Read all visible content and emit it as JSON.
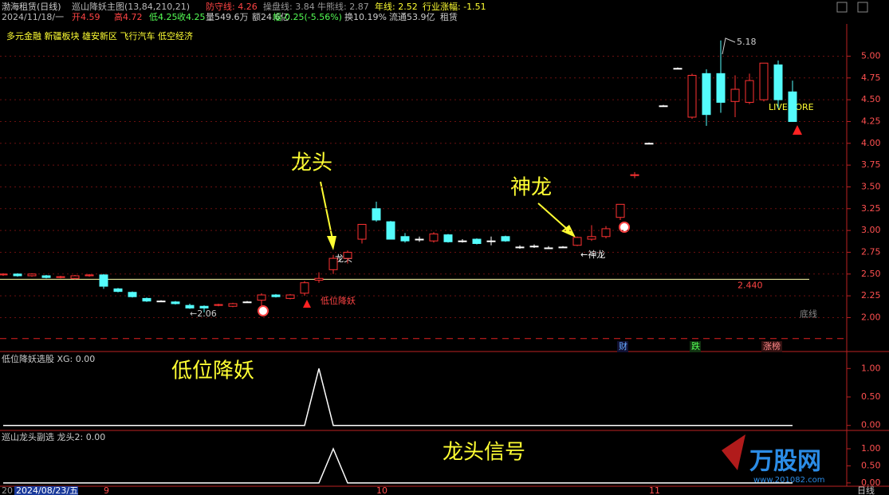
{
  "header": {
    "stock": "渤海租赁(日线)",
    "indicator": "巡山降妖主图(13,84,210,21)",
    "defense": "防守线: 4.26",
    "operate": "操盘线: 3.84",
    "bull_bear": "牛熊线: 2.87",
    "year_line": "年线: 2.52",
    "industry": "行业涨幅: -1.51",
    "date": "2024/11/18/一",
    "open": "开4.59",
    "high": "高4.72",
    "low": "低4.25",
    "close": "收4.25",
    "volume": "量549.6万",
    "amount": "额24.6亿",
    "change": "幅-0.25(-5.56%)",
    "turnover": "换10.19%",
    "float": "流通53.9亿",
    "industry_name": "租赁"
  },
  "sectors": "多元金融 新疆板块 雄安新区 飞行汽车 低空经济",
  "annotations": {
    "dragon_head": "龙头",
    "divine_dragon": "神龙",
    "low_demon": "低位降妖",
    "head_signal": "龙头信号",
    "small_head": "龙头",
    "small_divine": "←神龙",
    "small_low": "低位降妖",
    "low_price": "←2.06",
    "high_price": "5.18",
    "livemore": "LIVEMORE",
    "tag_fin": "财",
    "tag_fall": "跌",
    "tag_rank": "涨榜"
  },
  "footer": {
    "cursor_date": "2024/08/23/五",
    "cut_year": "20",
    "period": "日线",
    "logo": "万股网",
    "site": "www.201082.com"
  },
  "chart_data": [
    {
      "type": "candlestick",
      "up_color": "#ff3232",
      "down_color": "#54fcfc",
      "categories": [
        null,
        null,
        null,
        null,
        null,
        null,
        null,
        "9",
        null,
        null,
        null,
        null,
        null,
        null,
        null,
        null,
        null,
        null,
        null,
        null,
        null,
        null,
        null,
        null,
        null,
        null,
        "10",
        null,
        null,
        null,
        null,
        null,
        null,
        null,
        null,
        null,
        null,
        null,
        null,
        null,
        null,
        null,
        null,
        null,
        null,
        "11",
        null,
        null,
        null,
        null,
        null,
        null,
        null,
        null,
        null,
        null
      ],
      "ohlc": [
        [
          2.49,
          2.51,
          2.48,
          2.5
        ],
        [
          2.5,
          2.51,
          2.47,
          2.48
        ],
        [
          2.48,
          2.51,
          2.47,
          2.5
        ],
        [
          2.48,
          2.49,
          2.45,
          2.46
        ],
        [
          2.46,
          2.48,
          2.45,
          2.47
        ],
        [
          2.45,
          2.49,
          2.44,
          2.48
        ],
        [
          2.48,
          2.5,
          2.47,
          2.49
        ],
        [
          2.49,
          2.5,
          2.33,
          2.36
        ],
        [
          2.33,
          2.34,
          2.29,
          2.3
        ],
        [
          2.29,
          2.3,
          2.23,
          2.24
        ],
        [
          2.22,
          2.23,
          2.18,
          2.19
        ],
        [
          2.19,
          2.2,
          2.18,
          2.19
        ],
        [
          2.18,
          2.19,
          2.15,
          2.16
        ],
        [
          2.14,
          2.16,
          2.1,
          2.11
        ],
        [
          2.13,
          2.14,
          2.06,
          2.11
        ],
        [
          2.14,
          2.16,
          2.13,
          2.15
        ],
        [
          2.13,
          2.17,
          2.12,
          2.16
        ],
        [
          2.18,
          2.19,
          2.17,
          2.18
        ],
        [
          2.2,
          2.28,
          2.12,
          2.26
        ],
        [
          2.26,
          2.27,
          2.23,
          2.24
        ],
        [
          2.22,
          2.27,
          2.21,
          2.26
        ],
        [
          2.28,
          2.42,
          2.25,
          2.4
        ],
        [
          2.43,
          2.52,
          2.4,
          2.45
        ],
        [
          2.55,
          2.72,
          2.5,
          2.68
        ],
        [
          2.68,
          2.77,
          2.62,
          2.75
        ],
        [
          2.9,
          3.07,
          2.85,
          3.07
        ],
        [
          3.25,
          3.33,
          3.1,
          3.12
        ],
        [
          3.1,
          3.11,
          2.9,
          2.9
        ],
        [
          2.93,
          2.97,
          2.86,
          2.88
        ],
        [
          2.9,
          2.93,
          2.87,
          2.9
        ],
        [
          2.88,
          2.98,
          2.86,
          2.96
        ],
        [
          2.95,
          2.96,
          2.86,
          2.87
        ],
        [
          2.88,
          2.9,
          2.86,
          2.88
        ],
        [
          2.9,
          2.91,
          2.84,
          2.85
        ],
        [
          2.88,
          2.93,
          2.83,
          2.88
        ],
        [
          2.93,
          2.94,
          2.87,
          2.88
        ],
        [
          2.81,
          2.83,
          2.79,
          2.81
        ],
        [
          2.82,
          2.84,
          2.8,
          2.82
        ],
        [
          2.8,
          2.82,
          2.79,
          2.8
        ],
        [
          2.81,
          2.82,
          2.8,
          2.81
        ],
        [
          2.83,
          2.93,
          2.82,
          2.92
        ],
        [
          2.9,
          3.06,
          2.88,
          2.93
        ],
        [
          2.93,
          3.05,
          2.91,
          3.02
        ],
        [
          3.15,
          3.3,
          3.12,
          3.3
        ],
        [
          3.63,
          3.67,
          3.6,
          3.64
        ],
        [
          4.0,
          4.01,
          3.99,
          4.0
        ],
        [
          4.43,
          4.44,
          4.42,
          4.43
        ],
        [
          4.86,
          4.87,
          4.85,
          4.86
        ],
        [
          4.3,
          4.8,
          4.28,
          4.78
        ],
        [
          4.8,
          4.85,
          4.2,
          4.33
        ],
        [
          4.8,
          5.18,
          4.35,
          4.47
        ],
        [
          4.48,
          4.78,
          4.3,
          4.62
        ],
        [
          4.47,
          4.8,
          4.45,
          4.72
        ],
        [
          4.5,
          4.92,
          4.48,
          4.92
        ],
        [
          4.9,
          4.95,
          4.4,
          4.5
        ],
        [
          4.59,
          4.72,
          4.25,
          4.25
        ]
      ],
      "ylim": [
        1.62,
        5.37
      ],
      "yticks": [
        {
          "value": 2,
          "label": "2.00"
        },
        {
          "value": 2.25,
          "label": "2.25"
        },
        {
          "value": 2.5,
          "label": "2.50"
        },
        {
          "value": 2.75,
          "label": "2.75"
        },
        {
          "value": 3,
          "label": "3.00"
        },
        {
          "value": 3.25,
          "label": "3.25"
        },
        {
          "value": 3.5,
          "label": "3.50"
        },
        {
          "value": 3.75,
          "label": "3.75"
        },
        {
          "value": 4,
          "label": "4.00"
        },
        {
          "value": 4.25,
          "label": "4.25"
        },
        {
          "value": 4.5,
          "label": "4.50"
        },
        {
          "value": 4.75,
          "label": "4.75"
        },
        {
          "value": 5,
          "label": "5.00"
        }
      ],
      "hline": {
        "value": 2.44,
        "label": "2.440"
      },
      "floor_line": {
        "value": 1.76,
        "label": "底线"
      }
    },
    {
      "type": "line",
      "title": "低位降妖选股 XG: 0.00",
      "color": "#ffffff",
      "values": [
        0,
        0,
        0,
        0,
        0,
        0,
        0,
        0,
        0,
        0,
        0,
        0,
        0,
        0,
        0,
        0,
        0,
        0,
        0,
        0,
        0,
        0,
        1,
        0,
        0,
        0,
        0,
        0,
        0,
        0,
        0,
        0,
        0,
        0,
        0,
        0,
        0,
        0,
        0,
        0,
        0,
        0,
        0,
        0,
        0,
        0,
        0,
        0,
        0,
        0,
        0,
        0,
        0,
        0,
        0,
        0
      ],
      "ylim": [
        -0.06,
        1.2
      ],
      "yticks": [
        {
          "value": 0,
          "label": "0.00"
        },
        {
          "value": 0.5,
          "label": "0.50"
        },
        {
          "value": 1,
          "label": "1.00"
        }
      ]
    },
    {
      "type": "line",
      "title": "巡山龙头副选 龙头2: 0.00",
      "color": "#ffffff",
      "values": [
        0,
        0,
        0,
        0,
        0,
        0,
        0,
        0,
        0,
        0,
        0,
        0,
        0,
        0,
        0,
        0,
        0,
        0,
        0,
        0,
        0,
        0,
        0,
        1,
        0,
        0,
        0,
        0,
        0,
        0,
        0,
        0,
        0,
        0,
        0,
        0,
        0,
        0,
        0,
        0,
        0,
        0,
        0,
        0,
        0,
        0,
        0,
        0,
        0,
        0,
        0,
        0,
        0,
        0,
        0,
        0
      ],
      "ylim": [
        -0.05,
        1.35
      ],
      "yticks": [
        {
          "value": 0,
          "label": "0.00"
        },
        {
          "value": 0.5,
          "label": "0.50"
        },
        {
          "value": 1,
          "label": "1.00"
        }
      ]
    }
  ]
}
